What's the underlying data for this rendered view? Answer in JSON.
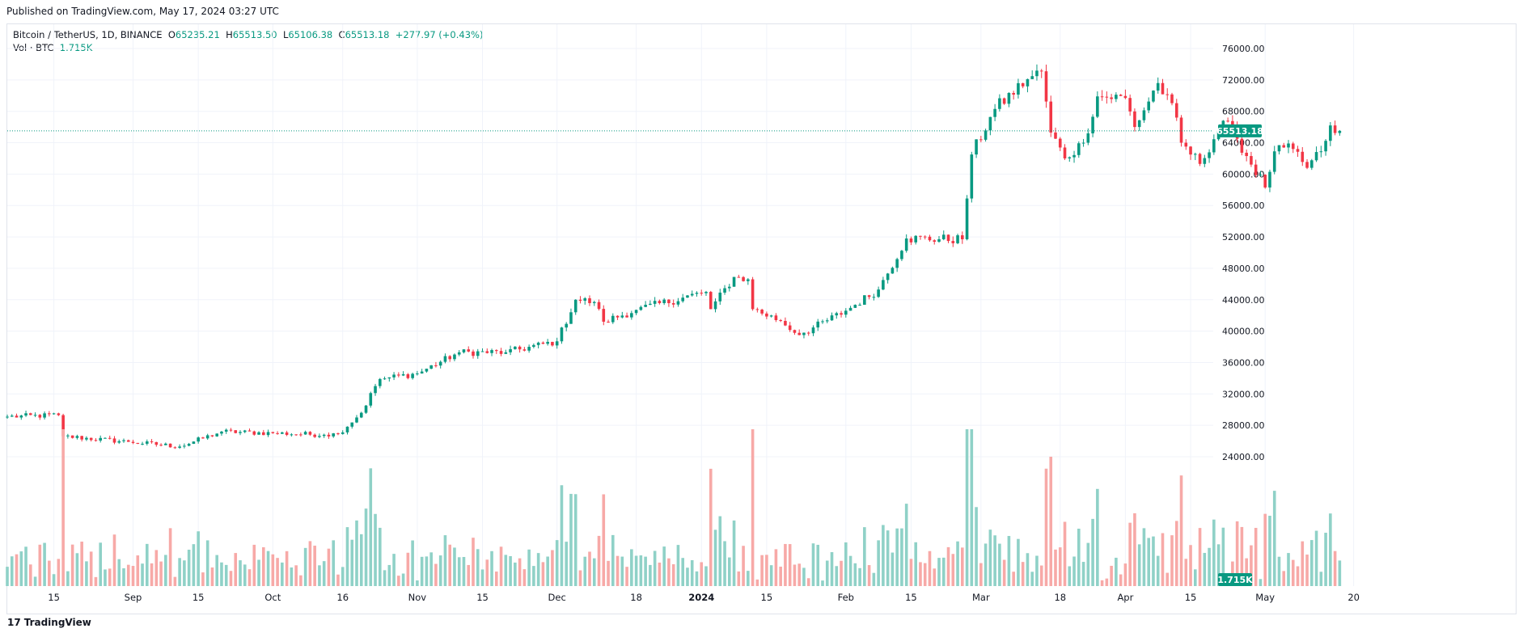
{
  "header": {
    "published": "Published on TradingView.com, May 17, 2024 03:27 UTC"
  },
  "legend": {
    "symbol": "Bitcoin / TetherUS, 1D, BINANCE",
    "open_label": "O",
    "open": "65235.21",
    "high_label": "H",
    "high": "65513.50",
    "low_label": "L",
    "low": "65106.38",
    "close_label": "C",
    "close": "65513.18",
    "change": "+277.97 (+0.43%)",
    "vol_label": "Vol · BTC",
    "vol_value": "1.715K"
  },
  "footer": {
    "logo_mark": "17",
    "logo_text": "TradingView"
  },
  "colors": {
    "up": "#089981",
    "down": "#f23645",
    "up_vol": "#8fd1c7",
    "down_vol": "#f7a9a7",
    "grid": "#f0f3fa"
  },
  "chart_data": {
    "type": "candlestick",
    "title": "Bitcoin / TetherUS, 1D, BINANCE",
    "ylim": [
      20000,
      78000
    ],
    "y_ticks": [
      "76000.00",
      "72000.00",
      "68000.00",
      "64000.00",
      "60000.00",
      "56000.00",
      "52000.00",
      "48000.00",
      "44000.00",
      "40000.00",
      "36000.00",
      "32000.00",
      "28000.00",
      "24000.00"
    ],
    "x_ticks": [
      "15",
      "Sep",
      "15",
      "Oct",
      "16",
      "Nov",
      "15",
      "Dec",
      "18",
      "2024",
      "15",
      "Feb",
      "15",
      "Mar",
      "18",
      "Apr",
      "15",
      "May",
      "20"
    ],
    "bold_ticks": [
      "2024"
    ],
    "last_price": "65513.18",
    "last_volume": "1.715K",
    "price_anchors": [
      [
        "2023-08-05",
        29100
      ],
      [
        "2023-08-16",
        29300
      ],
      [
        "2023-08-17",
        26600
      ],
      [
        "2023-08-31",
        25900
      ],
      [
        "2023-09-11",
        25300
      ],
      [
        "2023-09-20",
        27200
      ],
      [
        "2023-10-01",
        27000
      ],
      [
        "2023-10-12",
        26800
      ],
      [
        "2023-10-15",
        26900
      ],
      [
        "2023-10-20",
        29600
      ],
      [
        "2023-10-23",
        33000
      ],
      [
        "2023-10-24",
        33900
      ],
      [
        "2023-11-01",
        34600
      ],
      [
        "2023-11-10",
        37300
      ],
      [
        "2023-11-20",
        37300
      ],
      [
        "2023-12-01",
        38700
      ],
      [
        "2023-12-05",
        44000
      ],
      [
        "2023-12-09",
        43700
      ],
      [
        "2023-12-11",
        41200
      ],
      [
        "2023-12-18",
        42700
      ],
      [
        "2024-01-02",
        45000
      ],
      [
        "2024-01-03",
        42800
      ],
      [
        "2024-01-08",
        46900
      ],
      [
        "2024-01-11",
        46600
      ],
      [
        "2024-01-12",
        42800
      ],
      [
        "2024-01-18",
        41300
      ],
      [
        "2024-01-22",
        39500
      ],
      [
        "2024-01-23",
        39800
      ],
      [
        "2024-02-01",
        42600
      ],
      [
        "2024-02-08",
        45300
      ],
      [
        "2024-02-14",
        51800
      ],
      [
        "2024-02-26",
        51700
      ],
      [
        "2024-02-28",
        62500
      ],
      [
        "2024-03-04",
        68300
      ],
      [
        "2024-03-11",
        72100
      ],
      [
        "2024-03-14",
        73100
      ],
      [
        "2024-03-16",
        65300
      ],
      [
        "2024-03-19",
        62000
      ],
      [
        "2024-03-23",
        64000
      ],
      [
        "2024-03-26",
        69900
      ],
      [
        "2024-04-01",
        69700
      ],
      [
        "2024-04-03",
        66000
      ],
      [
        "2024-04-08",
        71600
      ],
      [
        "2024-04-12",
        67200
      ],
      [
        "2024-04-13",
        64000
      ],
      [
        "2024-04-17",
        61300
      ],
      [
        "2024-04-22",
        66800
      ],
      [
        "2024-04-25",
        64500
      ],
      [
        "2024-05-01",
        58300
      ],
      [
        "2024-05-03",
        62900
      ],
      [
        "2024-05-07",
        63200
      ],
      [
        "2024-05-10",
        60800
      ],
      [
        "2024-05-13",
        62900
      ],
      [
        "2024-05-15",
        66200
      ],
      [
        "2024-05-16",
        65235
      ],
      [
        "2024-05-17",
        65513
      ]
    ],
    "volume_range": [
      5000,
      76000
    ],
    "volume_note": "daily BTC volume bars, colored by candle direction"
  }
}
